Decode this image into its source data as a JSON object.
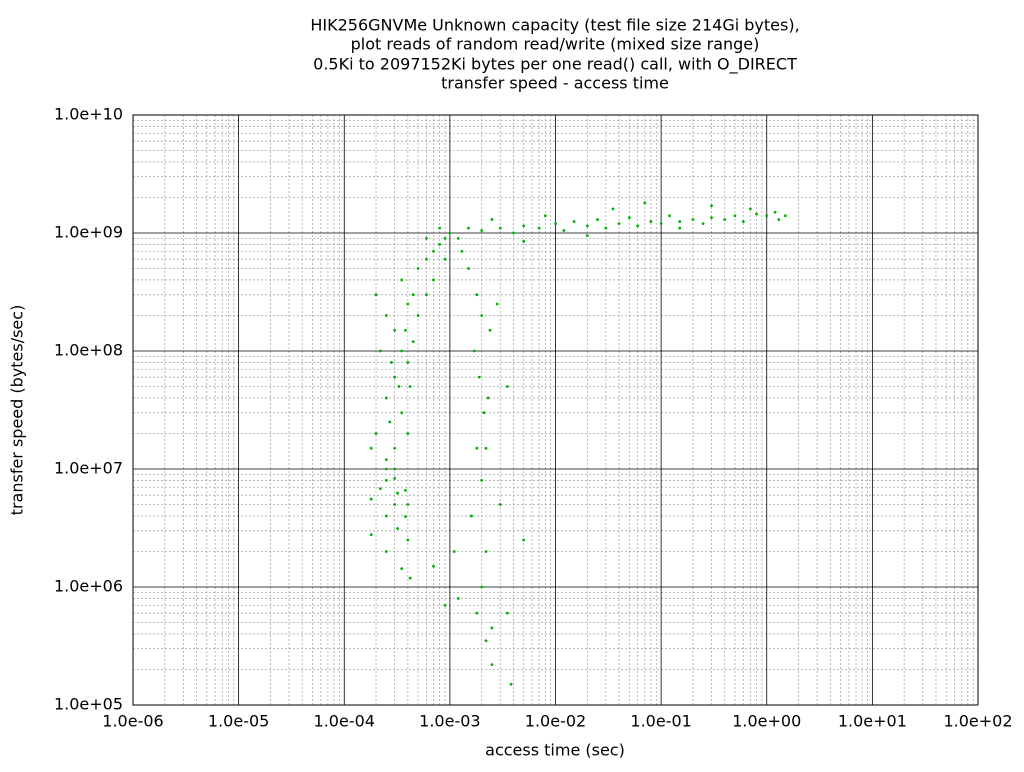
{
  "chart_data": {
    "type": "scatter",
    "title": [
      "HIK256GNVMe Unknown capacity (test file size 214Gi bytes),",
      "plot reads of random read/write (mixed size range)",
      "0.5Ki to 2097152Ki bytes per one read() call, with O_DIRECT",
      "transfer speed - access time"
    ],
    "x_label": "access time (sec)",
    "y_label": "transfer speed (bytes/sec)",
    "color": "#00b000",
    "log_x": true,
    "log_y": true,
    "grid": true,
    "minor_grid": true,
    "xlim": [
      1e-06,
      100
    ],
    "ylim": [
      100000,
      10000000000
    ],
    "xticks": [
      {
        "value": 1e-06,
        "label": "1.0e-06"
      },
      {
        "value": 1e-05,
        "label": "1.0e-05"
      },
      {
        "value": 0.0001,
        "label": "1.0e-04"
      },
      {
        "value": 0.001,
        "label": "1.0e-03"
      },
      {
        "value": 0.01,
        "label": "1.0e-02"
      },
      {
        "value": 0.1,
        "label": "1.0e-01"
      },
      {
        "value": 1,
        "label": "1.0e+00"
      },
      {
        "value": 10,
        "label": "1.0e+01"
      },
      {
        "value": 100,
        "label": "1.0e+02"
      }
    ],
    "yticks": [
      {
        "value": 100000,
        "label": "1.0e+05"
      },
      {
        "value": 1000000,
        "label": "1.0e+06"
      },
      {
        "value": 10000000,
        "label": "1.0e+07"
      },
      {
        "value": 100000000,
        "label": "1.0e+08"
      },
      {
        "value": 1000000000,
        "label": "1.0e+09"
      },
      {
        "value": 10000000000,
        "label": "1.0e+10"
      }
    ],
    "x": [
      0.0012,
      0.0015,
      0.002,
      0.003,
      0.004,
      0.005,
      0.007,
      0.01,
      0.012,
      0.015,
      0.02,
      0.025,
      0.03,
      0.04,
      0.05,
      0.06,
      0.08,
      0.1,
      0.12,
      0.15,
      0.2,
      0.25,
      0.3,
      0.4,
      0.5,
      0.6,
      0.8,
      1.0,
      1.2,
      1.5,
      0.035,
      0.07,
      0.3,
      0.02,
      0.008,
      0.0025,
      0.15,
      0.7,
      1.3,
      0.005,
      0.0005,
      0.0006,
      0.0007,
      0.0008,
      0.0009,
      0.0007,
      0.0006,
      0.0005,
      0.0008,
      0.001,
      0.0009,
      0.0006,
      0.0002,
      0.00025,
      0.0003,
      0.00035,
      0.0004,
      0.0003,
      0.00025,
      0.00035,
      0.0004,
      0.0003,
      0.00045,
      0.0004,
      0.00035,
      0.0002,
      0.00022,
      0.00028,
      0.00033,
      0.00038,
      0.00042,
      0.00027,
      0.00018,
      0.0003,
      0.00025,
      0.00045,
      0.00018,
      0.00025,
      0.00035,
      0.00042,
      0.00018,
      0.00025,
      0.00032,
      0.0004,
      0.00022,
      0.0003,
      0.00038,
      0.00025,
      0.00032,
      0.0004,
      0.00025,
      0.0003,
      0.00038,
      0.0015,
      0.0018,
      0.002,
      0.0017,
      0.0019,
      0.0021,
      0.0018,
      0.002,
      0.0016,
      0.0022,
      0.002,
      0.0018,
      0.0022,
      0.0025,
      0.0025,
      0.0022,
      0.0023,
      0.0024,
      0.0013,
      0.0011,
      0.0012,
      0.0035,
      0.0035,
      0.0038,
      0.0028,
      0.003,
      0.005,
      0.0007,
      0.0009
    ],
    "values": [
      900000000.0,
      1100000000.0,
      1050000000.0,
      1100000000.0,
      1000000000.0,
      1150000000.0,
      1100000000.0,
      1200000000.0,
      1050000000.0,
      1250000000.0,
      1150000000.0,
      1300000000.0,
      1100000000.0,
      1200000000.0,
      1350000000.0,
      1150000000.0,
      1250000000.0,
      1200000000.0,
      1400000000.0,
      1250000000.0,
      1300000000.0,
      1200000000.0,
      1350000000.0,
      1300000000.0,
      1400000000.0,
      1250000000.0,
      1450000000.0,
      1400000000.0,
      1500000000.0,
      1400000000.0,
      1600000000.0,
      1800000000.0,
      1700000000.0,
      950000000.0,
      1400000000.0,
      1300000000.0,
      1100000000.0,
      1600000000.0,
      1300000000.0,
      850000000.0,
      500000000.0,
      600000000.0,
      700000000.0,
      800000000.0,
      900000000.0,
      400000000.0,
      300000000.0,
      200000000.0,
      1100000000.0,
      1000000000.0,
      600000000.0,
      900000000.0,
      300000000.0,
      200000000.0,
      150000000.0,
      100000000.0,
      80000000.0,
      60000000.0,
      40000000.0,
      30000000.0,
      20000000.0,
      15000000.0,
      120000000.0,
      250000000.0,
      400000000.0,
      20000000.0,
      100000000.0,
      80000000.0,
      50000000.0,
      150000000.0,
      50000000.0,
      25000000.0,
      15000000.0,
      10000000.0,
      12000000.0,
      300000000.0,
      2780000.0,
      2000000.0,
      1430000.0,
      1190000.0,
      5560000.0,
      4000000.0,
      3130000.0,
      2500000.0,
      6800000.0,
      5000000.0,
      3950000.0,
      8000000.0,
      6250000.0,
      5000000.0,
      10000000.0,
      8300000.0,
      6600000.0,
      500000000.0,
      300000000.0,
      200000000.0,
      100000000.0,
      60000000.0,
      30000000.0,
      15000000.0,
      8000000.0,
      4000000.0,
      2000000.0,
      1000000.0,
      600000.0,
      350000.0,
      220000.0,
      450000.0,
      15000000.0,
      40000000.0,
      150000000.0,
      700000000.0,
      2000000.0,
      800000.0,
      50000000.0,
      600000.0,
      150000.0,
      250000000.0,
      5000000.0,
      2500000.0,
      1500000.0,
      700000.0
    ]
  }
}
